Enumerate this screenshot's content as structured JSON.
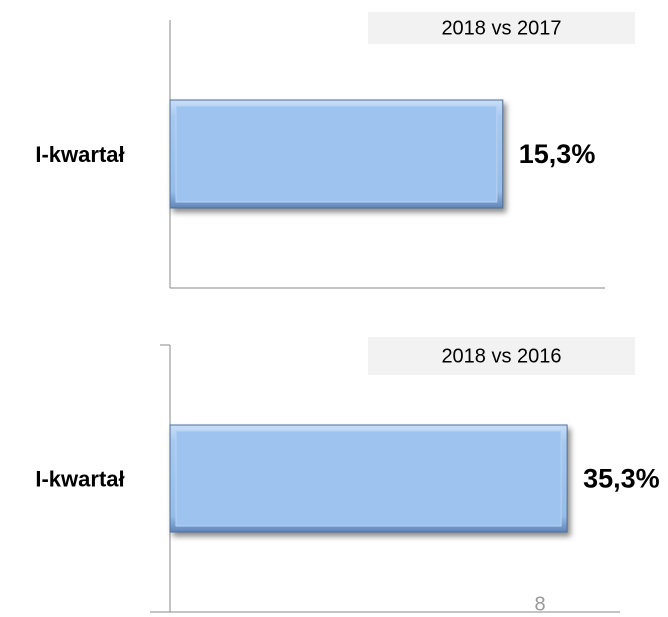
{
  "chart_data": [
    {
      "type": "bar",
      "title": "2018 vs 2017",
      "categories": [
        "I-kwartał"
      ],
      "values": [
        15.3
      ],
      "value_labels": [
        "15,3%"
      ],
      "xlim": [
        0,
        20
      ],
      "color": "#9dc3ee"
    },
    {
      "type": "bar",
      "title": "2018 vs 2016",
      "categories": [
        "I-kwartał"
      ],
      "values": [
        35.3
      ],
      "value_labels": [
        "35,3%"
      ],
      "xlim": [
        0,
        40
      ],
      "color": "#9dc3ee"
    }
  ],
  "page_number": "8"
}
